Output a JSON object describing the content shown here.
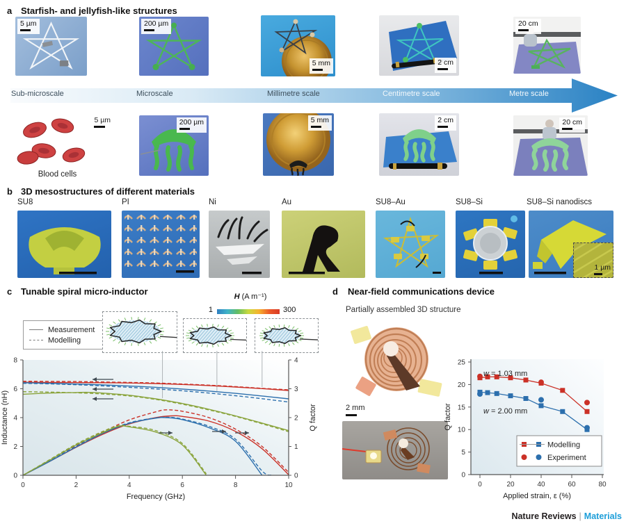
{
  "figure": {
    "panel_a": {
      "label": "a",
      "title": "Starfish- and jellyfish-like structures",
      "scale_axis_labels": [
        "Sub-microscale",
        "Microscale",
        "Millimetre scale",
        "Centimetre scale",
        "Metre scale"
      ],
      "row1_scalebars": [
        "5 µm",
        "200 µm",
        "5 mm",
        "2 cm",
        "20 cm"
      ],
      "row2_scalebars": [
        "5 µm",
        "200 µm",
        "5 mm",
        "2 cm",
        "20 cm"
      ],
      "blood_cells_caption": "Blood cells"
    },
    "panel_b": {
      "label": "b",
      "title": "3D mesostructures of different materials",
      "materials": [
        "SU8",
        "PI",
        "Ni",
        "Au",
        "SU8–Au",
        "SU8–Si",
        "SU8–Si nanodiscs"
      ],
      "inset_scalebar": "1 µm"
    },
    "panel_c": {
      "label": "c",
      "title": "Tunable spiral micro-inductor",
      "legend": [
        "Measurement",
        "Modelling"
      ],
      "colorbar": {
        "symbol": "H",
        "units": "(A m⁻¹)",
        "min": "1",
        "max": "300"
      }
    },
    "panel_d": {
      "label": "d",
      "title": "Near-field communications device",
      "subtitle": "Partially assembled 3D structure",
      "scalebar": "2 mm"
    },
    "footer": {
      "left": "Nature Reviews",
      "separator": "|",
      "right": "Materials"
    }
  },
  "chart_data": [
    {
      "type": "line",
      "title": "Tunable spiral micro-inductor",
      "xlabel": "Frequency (GHz)",
      "ylabel_left": "Inductance (nH)",
      "ylabel_right": "Q factor",
      "xlim": [
        0,
        10
      ],
      "ylim_left": [
        0,
        8
      ],
      "ylim_right": [
        0,
        4
      ],
      "xticks": [
        0,
        2,
        4,
        6,
        8,
        10
      ],
      "yticks_left": [
        0,
        2,
        4,
        6,
        8
      ],
      "yticks_right": [
        0,
        1,
        2,
        3,
        4
      ],
      "legend": [
        "Measurement",
        "Modelling"
      ],
      "colorbar": {
        "label": "H (A m⁻¹)",
        "min": 1,
        "max": 300
      },
      "leader_lines_x": [
        5.25,
        7.3,
        9.0
      ],
      "series": [
        {
          "name": "Inductance red measurement",
          "axis": "left",
          "color": "#cb3127",
          "dash": false,
          "points": [
            [
              0,
              6.45
            ],
            [
              1,
              6.44
            ],
            [
              2,
              6.43
            ],
            [
              3,
              6.42
            ],
            [
              4,
              6.4
            ],
            [
              5,
              6.36
            ],
            [
              6,
              6.3
            ],
            [
              7,
              6.22
            ],
            [
              8,
              6.12
            ],
            [
              9,
              6.01
            ],
            [
              10,
              5.88
            ]
          ]
        },
        {
          "name": "Inductance red modelling",
          "axis": "left",
          "color": "#cb3127",
          "dash": true,
          "points": [
            [
              0,
              6.52
            ],
            [
              1,
              6.51
            ],
            [
              2,
              6.5
            ],
            [
              3,
              6.47
            ],
            [
              4,
              6.44
            ],
            [
              5,
              6.4
            ],
            [
              6,
              6.33
            ],
            [
              7,
              6.25
            ],
            [
              8,
              6.15
            ],
            [
              9,
              6.03
            ],
            [
              10,
              5.93
            ]
          ]
        },
        {
          "name": "Inductance blue measurement",
          "axis": "left",
          "color": "#2c6fad",
          "dash": false,
          "points": [
            [
              0,
              6.42
            ],
            [
              1,
              6.38
            ],
            [
              2,
              6.33
            ],
            [
              3,
              6.27
            ],
            [
              4,
              6.19
            ],
            [
              5,
              6.1
            ],
            [
              6,
              5.98
            ],
            [
              7,
              5.84
            ],
            [
              8,
              5.68
            ],
            [
              9,
              5.5
            ],
            [
              10,
              5.3
            ]
          ]
        },
        {
          "name": "Inductance blue modelling",
          "axis": "left",
          "color": "#2c6fad",
          "dash": true,
          "points": [
            [
              0,
              6.38
            ],
            [
              1,
              6.34
            ],
            [
              2,
              6.28
            ],
            [
              3,
              6.2
            ],
            [
              4,
              6.1
            ],
            [
              5,
              5.99
            ],
            [
              6,
              5.86
            ],
            [
              7,
              5.7
            ],
            [
              8,
              5.52
            ],
            [
              9,
              5.31
            ],
            [
              10,
              5.08
            ]
          ]
        },
        {
          "name": "Inductance green measurement",
          "axis": "left",
          "color": "#8aa43c",
          "dash": false,
          "points": [
            [
              0,
              5.62
            ],
            [
              1,
              5.7
            ],
            [
              2,
              5.74
            ],
            [
              2.5,
              5.75
            ],
            [
              3,
              5.7
            ],
            [
              4,
              5.55
            ],
            [
              5,
              5.3
            ],
            [
              6,
              4.98
            ],
            [
              7,
              4.58
            ],
            [
              8,
              4.12
            ],
            [
              9,
              3.62
            ],
            [
              10,
              3.1
            ]
          ]
        },
        {
          "name": "Inductance green modelling",
          "axis": "left",
          "color": "#8aa43c",
          "dash": true,
          "points": [
            [
              0,
              5.8
            ],
            [
              1,
              5.77
            ],
            [
              2,
              5.72
            ],
            [
              3,
              5.64
            ],
            [
              4,
              5.5
            ],
            [
              5,
              5.26
            ],
            [
              6,
              4.93
            ],
            [
              7,
              4.53
            ],
            [
              8,
              4.08
            ],
            [
              9,
              3.57
            ],
            [
              10,
              3.02
            ]
          ]
        },
        {
          "name": "Q red measurement",
          "axis": "right",
          "color": "#cb3127",
          "dash": false,
          "points": [
            [
              0,
              0
            ],
            [
              1,
              0.48
            ],
            [
              2,
              0.97
            ],
            [
              3,
              1.42
            ],
            [
              4,
              1.78
            ],
            [
              5,
              2.0
            ],
            [
              5.6,
              2.06
            ],
            [
              6,
              2.04
            ],
            [
              7,
              1.88
            ],
            [
              8,
              1.52
            ],
            [
              9,
              0.92
            ],
            [
              10,
              0.02
            ]
          ]
        },
        {
          "name": "Q red modelling",
          "axis": "right",
          "color": "#cb3127",
          "dash": true,
          "points": [
            [
              0,
              0
            ],
            [
              1,
              0.5
            ],
            [
              2,
              1.02
            ],
            [
              3,
              1.5
            ],
            [
              4,
              1.92
            ],
            [
              5,
              2.2
            ],
            [
              5.4,
              2.27
            ],
            [
              6,
              2.22
            ],
            [
              7,
              2.0
            ],
            [
              8,
              1.6
            ],
            [
              9,
              1.0
            ],
            [
              10,
              0.1
            ]
          ]
        },
        {
          "name": "Q blue measurement",
          "axis": "right",
          "color": "#2c6fad",
          "dash": false,
          "points": [
            [
              0,
              0
            ],
            [
              1,
              0.48
            ],
            [
              2,
              0.98
            ],
            [
              3,
              1.45
            ],
            [
              4,
              1.8
            ],
            [
              5,
              1.98
            ],
            [
              5.4,
              2.0
            ],
            [
              6,
              1.93
            ],
            [
              7,
              1.65
            ],
            [
              8,
              1.18
            ],
            [
              9,
              0
            ]
          ]
        },
        {
          "name": "Q blue modelling",
          "axis": "right",
          "color": "#2c6fad",
          "dash": true,
          "points": [
            [
              0,
              0
            ],
            [
              1,
              0.5
            ],
            [
              2,
              1.0
            ],
            [
              3,
              1.47
            ],
            [
              4,
              1.82
            ],
            [
              5,
              1.99
            ],
            [
              5.5,
              2.01
            ],
            [
              6,
              1.95
            ],
            [
              7,
              1.7
            ],
            [
              8,
              1.25
            ],
            [
              9,
              0.15
            ],
            [
              9.35,
              0
            ]
          ]
        },
        {
          "name": "Q green measurement",
          "axis": "right",
          "color": "#8aa43c",
          "dash": false,
          "points": [
            [
              0,
              0
            ],
            [
              1,
              0.52
            ],
            [
              2,
              1.05
            ],
            [
              3,
              1.48
            ],
            [
              3.6,
              1.7
            ],
            [
              4,
              1.68
            ],
            [
              5,
              1.5
            ],
            [
              6,
              1.05
            ],
            [
              6.9,
              0
            ]
          ]
        },
        {
          "name": "Q green modelling",
          "axis": "right",
          "color": "#8aa43c",
          "dash": true,
          "points": [
            [
              0,
              0
            ],
            [
              1,
              0.54
            ],
            [
              2,
              1.08
            ],
            [
              3,
              1.52
            ],
            [
              3.6,
              1.72
            ],
            [
              4,
              1.7
            ],
            [
              5,
              1.55
            ],
            [
              6,
              1.1
            ],
            [
              6.9,
              0.05
            ]
          ]
        }
      ]
    },
    {
      "type": "scatter",
      "xlabel": "Applied strain, ε (%)",
      "ylabel": "Q factor",
      "xlim": [
        0,
        80
      ],
      "ylim": [
        0,
        25
      ],
      "xticks": [
        0,
        20,
        40,
        60,
        80
      ],
      "yticks": [
        0,
        5,
        10,
        15,
        20,
        25
      ],
      "annotations": [
        "w = 1.03 mm",
        "w = 2.00 mm"
      ],
      "legend": [
        "Modelling",
        "Experiment"
      ],
      "series": [
        {
          "name": "w=1.03mm modelling",
          "color": "#cb3127",
          "marker": "square",
          "line": true,
          "points": [
            [
              0,
              21.5
            ],
            [
              5,
              21.7
            ],
            [
              11,
              21.7
            ],
            [
              20,
              21.5
            ],
            [
              30,
              21.0
            ],
            [
              40,
              20.3
            ],
            [
              54,
              18.7
            ],
            [
              70,
              14.0
            ]
          ]
        },
        {
          "name": "w=1.03mm experiment",
          "color": "#cb3127",
          "marker": "circle",
          "line": false,
          "points": [
            [
              0,
              21.8
            ],
            [
              40,
              20.5
            ],
            [
              70,
              16.0
            ]
          ]
        },
        {
          "name": "w=2.00mm modelling",
          "color": "#2c6fad",
          "marker": "square",
          "line": true,
          "points": [
            [
              0,
              18.3
            ],
            [
              5,
              18.2
            ],
            [
              11,
              18.0
            ],
            [
              20,
              17.5
            ],
            [
              30,
              16.9
            ],
            [
              40,
              15.3
            ],
            [
              54,
              14.0
            ],
            [
              70,
              10.0
            ]
          ]
        },
        {
          "name": "w=2.00mm experiment",
          "color": "#2c6fad",
          "marker": "circle",
          "line": false,
          "points": [
            [
              0,
              17.9
            ],
            [
              40,
              16.6
            ],
            [
              70,
              10.4
            ]
          ]
        }
      ]
    }
  ]
}
